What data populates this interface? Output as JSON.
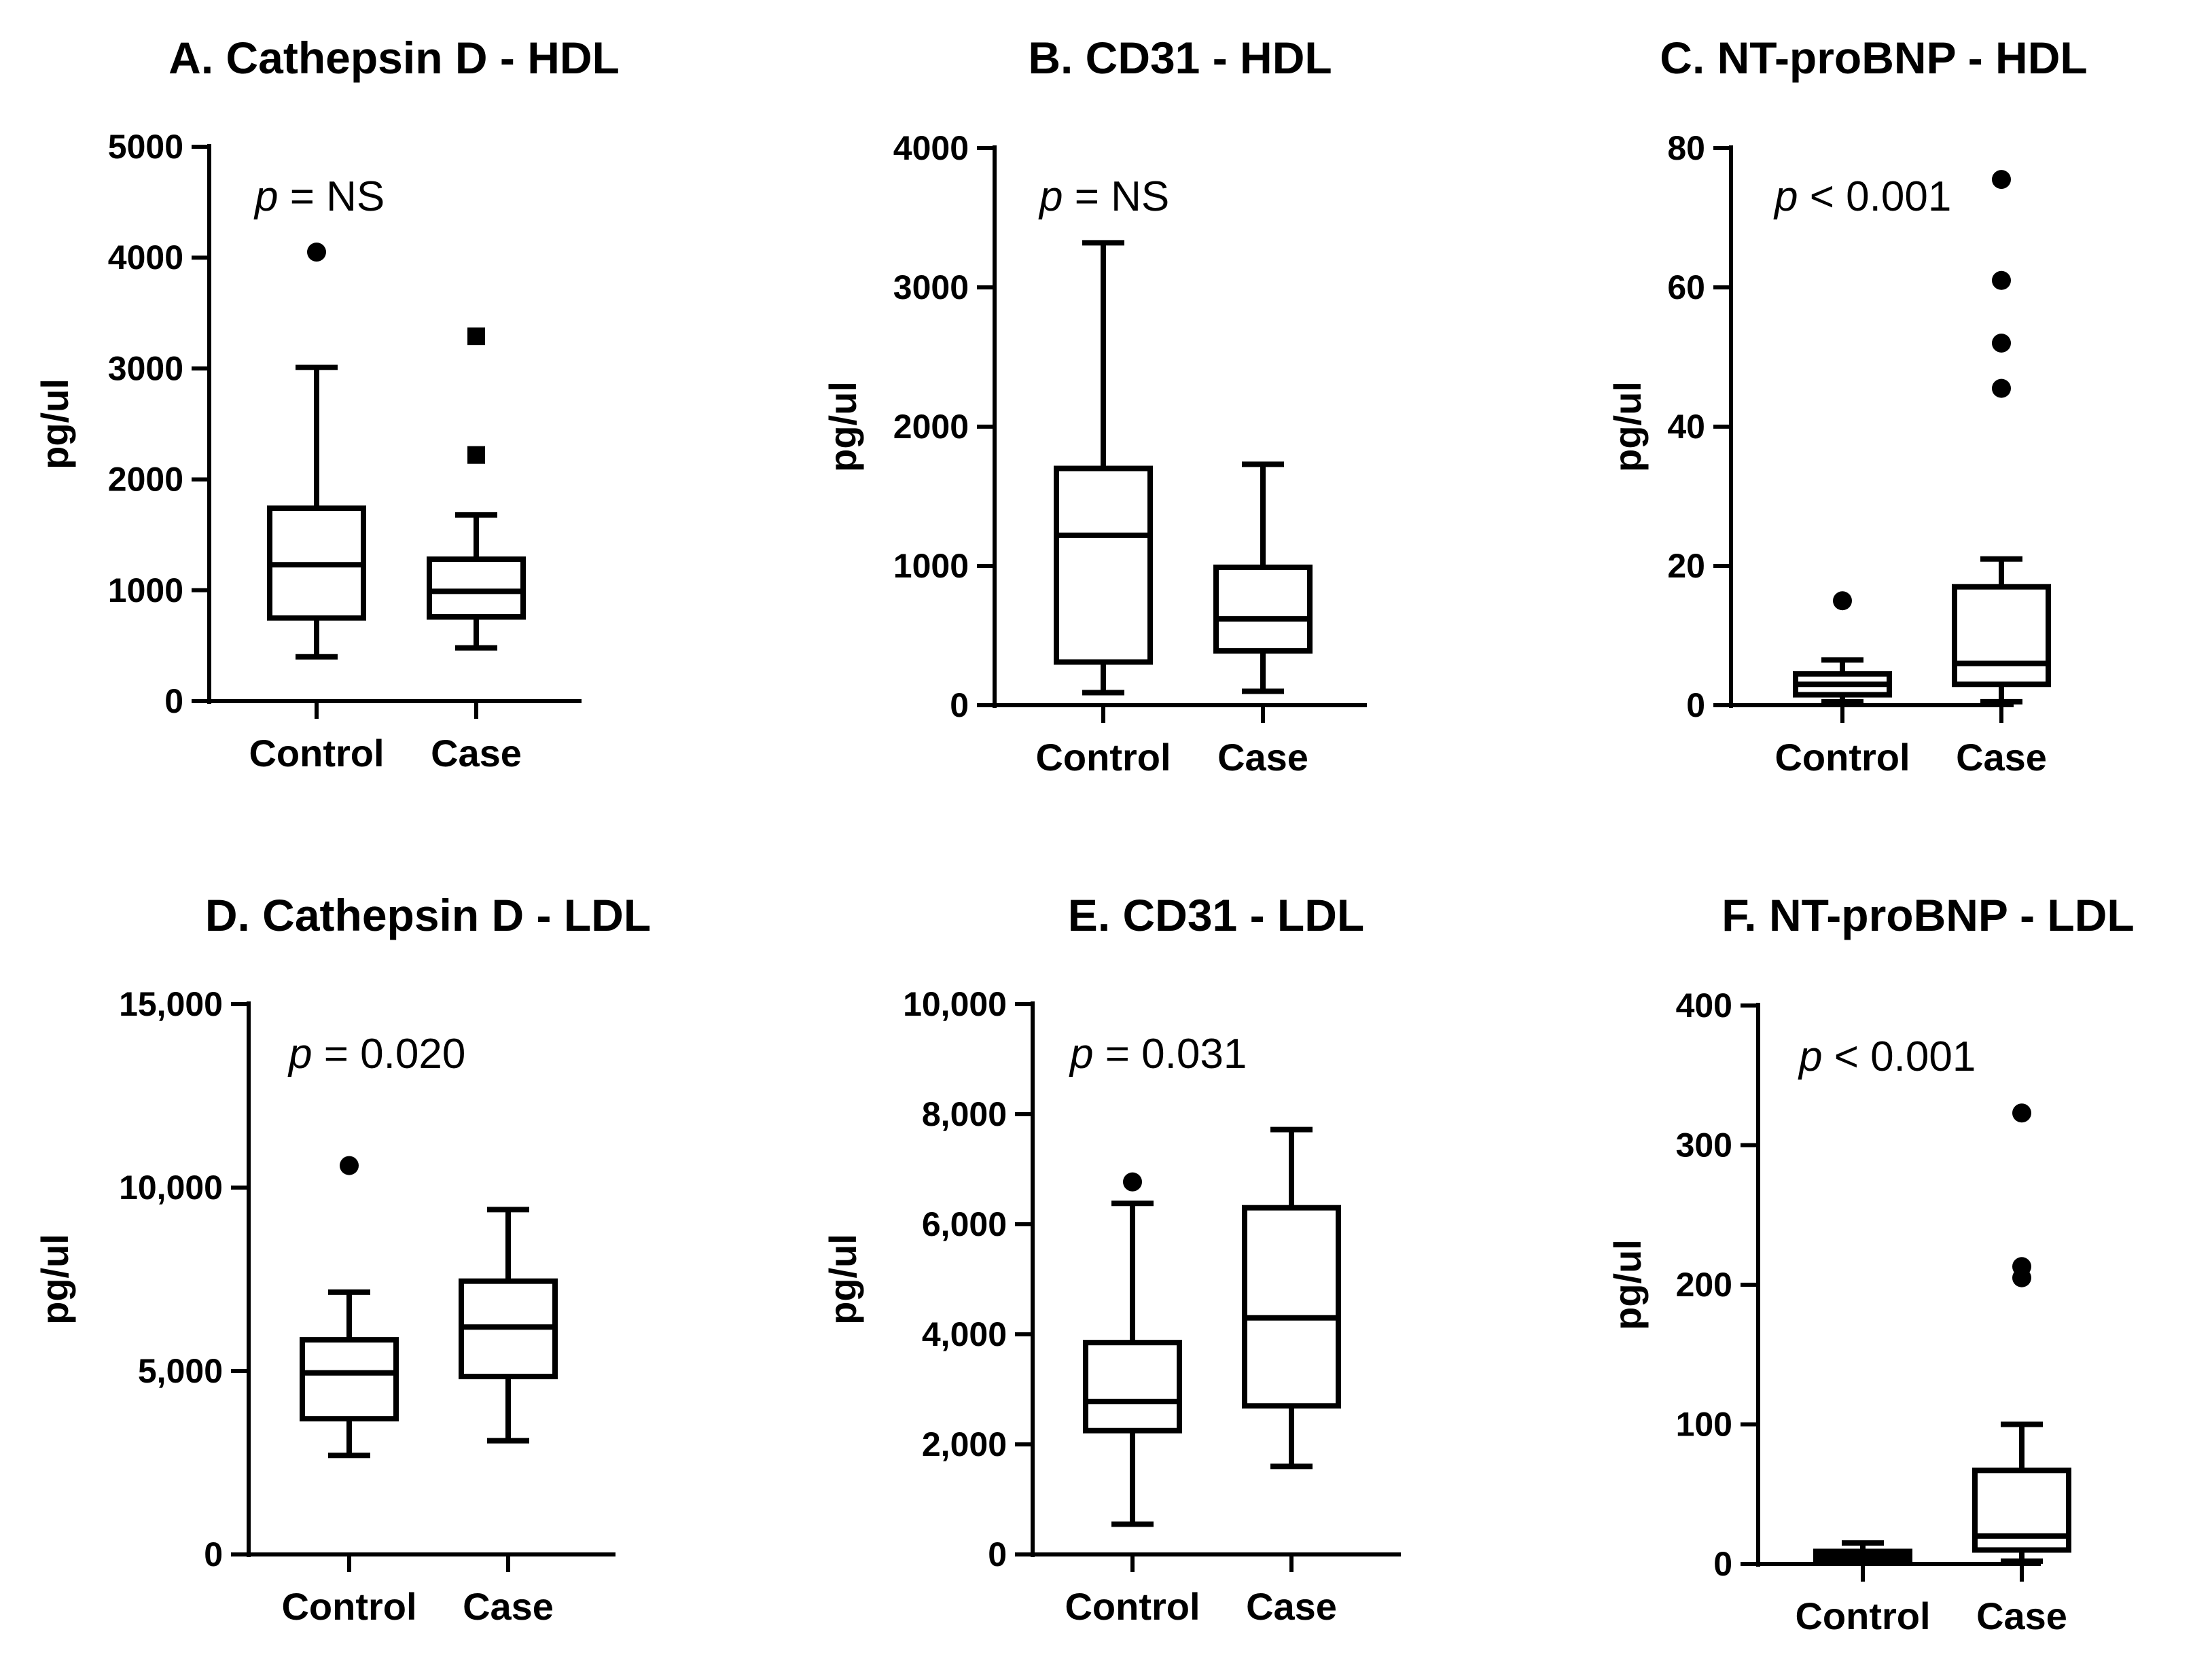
{
  "chart_data": [
    {
      "type": "box",
      "title": "A. Cathepsin D - HDL",
      "ylabel": "pg/ul",
      "ylim": [
        0,
        5000
      ],
      "yticks": [
        0,
        1000,
        2000,
        3000,
        4000,
        5000
      ],
      "ytick_labels": [
        "0",
        "1000",
        "2000",
        "3000",
        "4000",
        "5000"
      ],
      "p_symbol": "p",
      "p_rest": " = NS",
      "categories": [
        "Control",
        "Case"
      ],
      "boxes": [
        {
          "name": "Control",
          "whisker_low": 400,
          "q1": 750,
          "median": 1230,
          "q3": 1740,
          "whisker_high": 3010,
          "outliers": [
            4050
          ],
          "marker": "circle"
        },
        {
          "name": "Case",
          "whisker_low": 480,
          "q1": 760,
          "median": 990,
          "q3": 1280,
          "whisker_high": 1680,
          "outliers": [
            2220,
            3290
          ],
          "marker": "square"
        }
      ]
    },
    {
      "type": "box",
      "title": "B. CD31 - HDL",
      "ylabel": "pg/ul",
      "ylim": [
        0,
        4000
      ],
      "yticks": [
        0,
        1000,
        2000,
        3000,
        4000
      ],
      "ytick_labels": [
        "0",
        "1000",
        "2000",
        "3000",
        "4000"
      ],
      "p_symbol": "p",
      "p_rest": " = NS",
      "categories": [
        "Control",
        "Case"
      ],
      "boxes": [
        {
          "name": "Control",
          "whisker_low": 90,
          "q1": 310,
          "median": 1220,
          "q3": 1700,
          "whisker_high": 3320,
          "outliers": [],
          "marker": "circle"
        },
        {
          "name": "Case",
          "whisker_low": 100,
          "q1": 390,
          "median": 620,
          "q3": 990,
          "whisker_high": 1730,
          "outliers": [],
          "marker": "circle"
        }
      ]
    },
    {
      "type": "box",
      "title": "C. NT-proBNP - HDL",
      "ylabel": "pg/ul",
      "ylim": [
        0,
        80
      ],
      "yticks": [
        0,
        20,
        40,
        60,
        80
      ],
      "ytick_labels": [
        "0",
        "20",
        "40",
        "60",
        "80"
      ],
      "p_symbol": "p",
      "p_rest": " < 0.001",
      "categories": [
        "Control",
        "Case"
      ],
      "boxes": [
        {
          "name": "Control",
          "whisker_low": 0.5,
          "q1": 1.5,
          "median": 3,
          "q3": 4.5,
          "whisker_high": 6.5,
          "outliers": [
            15
          ],
          "marker": "circle"
        },
        {
          "name": "Case",
          "whisker_low": 0.5,
          "q1": 3,
          "median": 6,
          "q3": 17,
          "whisker_high": 21,
          "outliers": [
            45.5,
            52,
            61,
            75.5
          ],
          "marker": "circle"
        }
      ]
    },
    {
      "type": "box",
      "title": "D. Cathepsin D - LDL",
      "ylabel": "pg/ul",
      "ylim": [
        0,
        15000
      ],
      "yticks": [
        0,
        5000,
        10000,
        15000
      ],
      "ytick_labels": [
        "0",
        "5,000",
        "10,000",
        "15,000"
      ],
      "p_symbol": "p",
      "p_rest": " = 0.020",
      "categories": [
        "Control",
        "Case"
      ],
      "boxes": [
        {
          "name": "Control",
          "whisker_low": 2700,
          "q1": 3700,
          "median": 4950,
          "q3": 5850,
          "whisker_high": 7150,
          "outliers": [
            10600
          ],
          "marker": "circle"
        },
        {
          "name": "Case",
          "whisker_low": 3100,
          "q1": 4850,
          "median": 6200,
          "q3": 7450,
          "whisker_high": 9400,
          "outliers": [],
          "marker": "circle"
        }
      ]
    },
    {
      "type": "box",
      "title": "E. CD31 - LDL",
      "ylabel": "pg/ul",
      "ylim": [
        0,
        10000
      ],
      "yticks": [
        0,
        2000,
        4000,
        6000,
        8000,
        10000
      ],
      "ytick_labels": [
        "0",
        "2,000",
        "4,000",
        "6,000",
        "8,000",
        "10,000"
      ],
      "p_symbol": "p",
      "p_rest": " = 0.031",
      "categories": [
        "Control",
        "Case"
      ],
      "boxes": [
        {
          "name": "Control",
          "whisker_low": 550,
          "q1": 2250,
          "median": 2780,
          "q3": 3850,
          "whisker_high": 6380,
          "outliers": [
            6770
          ],
          "marker": "circle"
        },
        {
          "name": "Case",
          "whisker_low": 1600,
          "q1": 2700,
          "median": 4300,
          "q3": 6300,
          "whisker_high": 7720,
          "outliers": [],
          "marker": "circle"
        }
      ]
    },
    {
      "type": "box",
      "title": "F. NT-proBNP - LDL",
      "ylabel": "pg/ul",
      "ylim": [
        0,
        400
      ],
      "yticks": [
        0,
        100,
        200,
        300,
        400
      ],
      "ytick_labels": [
        "0",
        "100",
        "200",
        "300",
        "400"
      ],
      "p_symbol": "p",
      "p_rest": " < 0.001",
      "categories": [
        "Control",
        "Case"
      ],
      "boxes": [
        {
          "name": "Control",
          "whisker_low": 1,
          "q1": 3,
          "median": 6,
          "q3": 9,
          "whisker_high": 15,
          "outliers": [],
          "marker": "circle"
        },
        {
          "name": "Case",
          "whisker_low": 2,
          "q1": 10,
          "median": 20,
          "q3": 67,
          "whisker_high": 100,
          "outliers": [
            205,
            213,
            323
          ],
          "marker": "circle"
        }
      ]
    }
  ]
}
